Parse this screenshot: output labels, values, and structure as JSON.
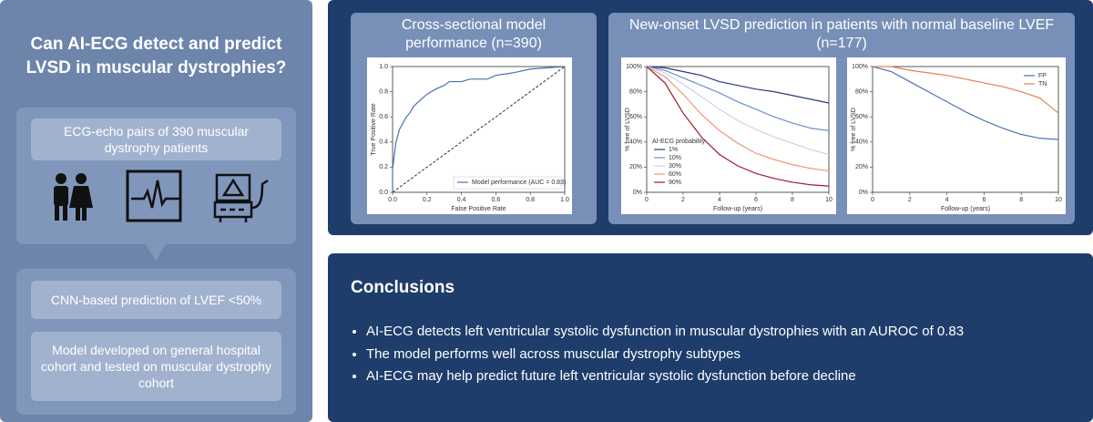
{
  "left": {
    "title": "Can AI-ECG detect and predict LVSD in muscular dystrophies?",
    "input": "ECG-echo pairs of 390 muscular dystrophy patients",
    "steps": [
      "CNN-based prediction of LVEF <50%",
      "Model developed on general hospital cohort and tested on muscular dystrophy cohort"
    ]
  },
  "roc": {
    "type": "line",
    "title": "Cross-sectional model performance (n=390)",
    "x_label": "False Positive Rate",
    "y_label": "True Positive Rate",
    "xlim": [
      0,
      1
    ],
    "ylim": [
      0,
      1
    ],
    "xticks": [
      {
        "value": 0,
        "label": "0.0"
      },
      0.2,
      0.4,
      0.6,
      0.8,
      {
        "value": 1,
        "label": "1.0"
      }
    ],
    "yticks": [
      {
        "value": 0,
        "label": "0.0"
      },
      0.2,
      0.4,
      0.6,
      0.8,
      {
        "value": 1,
        "label": "1.0"
      }
    ],
    "legend": "lower right",
    "x": [
      0,
      0,
      0.01,
      0.02,
      0.04,
      0.06,
      0.08,
      0.1,
      0.12,
      0.15,
      0.2,
      0.25,
      0.3,
      0.33,
      0.4,
      0.45,
      0.55,
      0.6,
      0.7,
      0.8,
      0.9,
      1
    ],
    "series": [
      {
        "name": "Model performance (AUC = 0.83)",
        "color": "#4c72b0",
        "values": [
          0,
          0.18,
          0.3,
          0.4,
          0.5,
          0.55,
          0.6,
          0.63,
          0.68,
          0.72,
          0.78,
          0.82,
          0.85,
          0.88,
          0.88,
          0.9,
          0.9,
          0.93,
          0.95,
          0.98,
          0.99,
          1
        ]
      }
    ]
  },
  "km_title": "New-onset LVSD prediction in patients with normal baseline LVEF (n=177)",
  "km": [
    {
      "type": "line",
      "x_label": "Follow-up (years)",
      "y_label": "% free of LVSD",
      "xlim": [
        0,
        10
      ],
      "ylim": [
        0,
        100
      ],
      "xticks": [
        0,
        2,
        4,
        6,
        8,
        10
      ],
      "yticks": [
        {
          "value": 0,
          "label": "0%"
        },
        {
          "value": 20,
          "label": "20%"
        },
        {
          "value": 40,
          "label": "40%"
        },
        {
          "value": 60,
          "label": "60%"
        },
        {
          "value": 80,
          "label": "80%"
        },
        {
          "value": 100,
          "label": "100%"
        }
      ],
      "legend": "lower left",
      "legend_title": "AI-ECG probability",
      "x": [
        0,
        1,
        2,
        3,
        4,
        5,
        6,
        7,
        8,
        9,
        10
      ],
      "series": [
        {
          "name": "1%",
          "color": "#2b3a7e",
          "values": [
            100,
            99,
            96,
            93,
            88,
            85,
            82,
            80,
            77,
            74,
            71
          ]
        },
        {
          "name": "10%",
          "color": "#6f8fcf",
          "values": [
            100,
            97,
            91,
            85,
            79,
            72,
            66,
            60,
            55,
            51,
            49
          ]
        },
        {
          "name": "30%",
          "color": "#c9d3ea",
          "values": [
            100,
            95,
            86,
            76,
            66,
            57,
            50,
            44,
            39,
            34,
            30
          ]
        },
        {
          "name": "60%",
          "color": "#ee9a7a",
          "values": [
            100,
            92,
            78,
            62,
            49,
            39,
            31,
            26,
            22,
            19,
            17
          ]
        },
        {
          "name": "90%",
          "color": "#a3163a",
          "values": [
            100,
            87,
            63,
            44,
            30,
            21,
            15,
            11,
            8,
            6,
            5
          ]
        }
      ]
    },
    {
      "type": "line",
      "x_label": "Follow-up (years)",
      "y_label": "% free of LVSD",
      "xlim": [
        0,
        10
      ],
      "ylim": [
        0,
        100
      ],
      "xticks": [
        0,
        2,
        4,
        6,
        8,
        10
      ],
      "yticks": [
        {
          "value": 0,
          "label": "0%"
        },
        {
          "value": 20,
          "label": "20%"
        },
        {
          "value": 40,
          "label": "40%"
        },
        {
          "value": 60,
          "label": "60%"
        },
        {
          "value": 80,
          "label": "80%"
        },
        {
          "value": 100,
          "label": "100%"
        }
      ],
      "legend": "upper right",
      "x": [
        0,
        1,
        2,
        3,
        4,
        5,
        6,
        7,
        8,
        9,
        10
      ],
      "series": [
        {
          "name": "FP",
          "color": "#4c72b0",
          "values": [
            100,
            96,
            88,
            80,
            72,
            64,
            57,
            51,
            46,
            43,
            42
          ]
        },
        {
          "name": "TN",
          "color": "#dd8452",
          "values": [
            100,
            100,
            97,
            95,
            93,
            90,
            87,
            84,
            80,
            75,
            63
          ]
        }
      ]
    }
  ],
  "conclusions": {
    "title": "Conclusions",
    "items": [
      "AI-ECG detects left ventricular systolic dysfunction in muscular dystrophies with an AUROC of 0.83",
      "The model performs well across muscular dystrophy subtypes",
      "AI-ECG may help predict future left ventricular systolic dysfunction before decline"
    ]
  }
}
